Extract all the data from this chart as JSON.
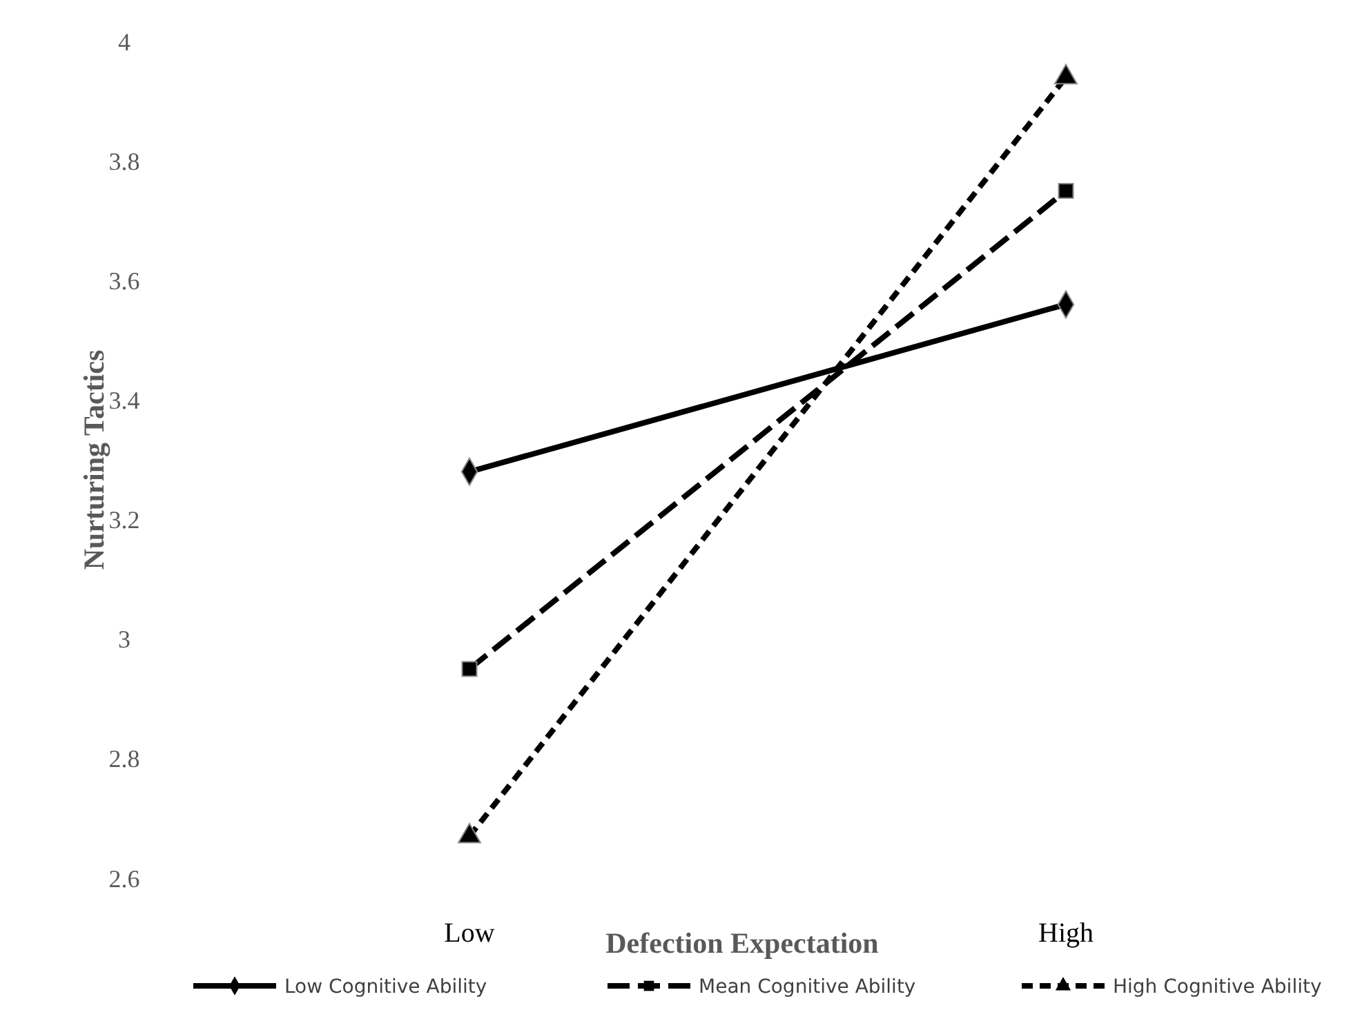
{
  "chart_data": {
    "type": "line",
    "xlabel": "Defection Expectation",
    "ylabel": "Nurturing Tactics",
    "categories": [
      "Low",
      "High"
    ],
    "ylim": [
      2.6,
      4
    ],
    "yticks": [
      2.6,
      2.8,
      3,
      3.2,
      3.4,
      3.6,
      3.8,
      4
    ],
    "grid": false,
    "legend": "bottom",
    "series": [
      {
        "name": "Low Cognitive Ability",
        "color": "#000000",
        "values": [
          3.28,
          3.56
        ],
        "marker": "diamond",
        "line_style": "solid"
      },
      {
        "name": "Mean Cognitive Ability",
        "color": "#000000",
        "values": [
          2.95,
          3.75
        ],
        "marker": "square",
        "line_style": "dashed"
      },
      {
        "name": "High Cognitive Ability",
        "color": "#000000",
        "values": [
          2.67,
          3.94
        ],
        "marker": "triangle",
        "line_style": "dotted"
      }
    ]
  }
}
